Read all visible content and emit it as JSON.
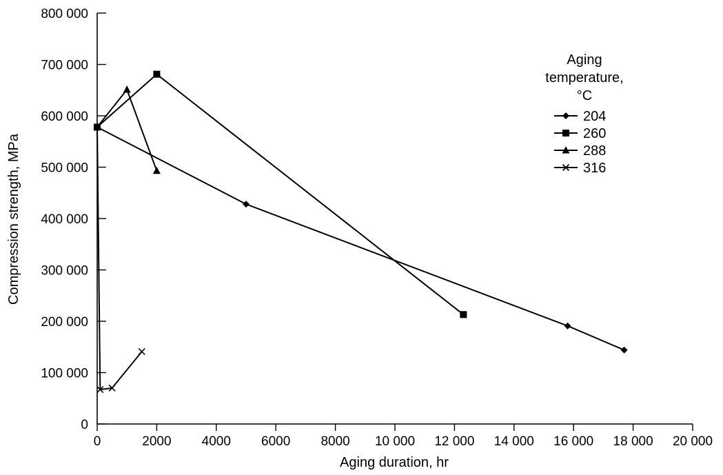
{
  "chart_data": {
    "type": "line",
    "xlabel": "Aging duration, hr",
    "ylabel": "Compression strength, MPa",
    "xlim": [
      0,
      20000
    ],
    "ylim": [
      0,
      800000
    ],
    "xticks": [
      0,
      2000,
      4000,
      6000,
      8000,
      10000,
      12000,
      14000,
      16000,
      18000,
      20000
    ],
    "xtick_labels": [
      "0",
      "2000",
      "4000",
      "6000",
      "8000",
      "10 000",
      "12 000",
      "14 000",
      "16 000",
      "18 000",
      "20 000"
    ],
    "yticks": [
      0,
      100000,
      200000,
      300000,
      400000,
      500000,
      600000,
      700000,
      800000
    ],
    "ytick_labels": [
      "0",
      "100 000",
      "200 000",
      "300 000",
      "400 000",
      "500 000",
      "600 000",
      "700 000",
      "800 000"
    ],
    "grid": false,
    "legend": {
      "title_lines": [
        "Aging",
        "temperature,",
        "°C"
      ],
      "placement": "right"
    },
    "series": [
      {
        "name": "204",
        "marker": "diamond",
        "x": [
          0,
          5000,
          15800,
          17700
        ],
        "y": [
          578000,
          428000,
          191000,
          144000
        ]
      },
      {
        "name": "260",
        "marker": "square",
        "x": [
          0,
          2000,
          12300
        ],
        "y": [
          578000,
          681000,
          213000
        ]
      },
      {
        "name": "288",
        "marker": "triangle",
        "x": [
          0,
          1000,
          2000
        ],
        "y": [
          578000,
          651000,
          493000
        ]
      },
      {
        "name": "316",
        "marker": "x",
        "x": [
          0,
          100,
          500,
          1500
        ],
        "y": [
          578000,
          67000,
          70000,
          141000
        ]
      }
    ]
  }
}
